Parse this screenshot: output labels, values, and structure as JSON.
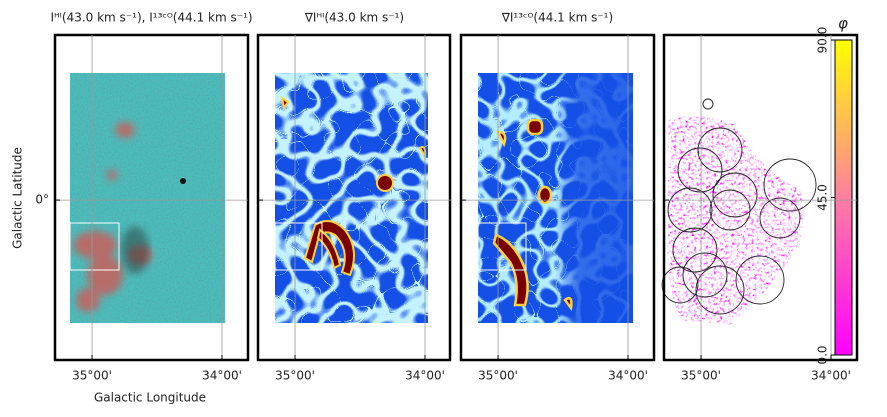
{
  "figure": {
    "xlabel": "Galactic Longitude",
    "ylabel": "Galactic Latitude",
    "xlim": [
      35.285,
      33.8
    ],
    "ylim": [
      -1.23,
      1.27
    ],
    "xticks": [
      {
        "value": 35,
        "label": "35°00'"
      },
      {
        "value": 34,
        "label": "34°00'"
      }
    ],
    "yticks": [
      {
        "value": 0,
        "label": "0°"
      }
    ],
    "panels": [
      {
        "title": "Iᴴᴵ(43.0 km s⁻¹), I¹³ᶜᴼ(44.1 km s⁻¹)"
      },
      {
        "title": "∇Iᴴᴵ(43.0 km s⁻¹)"
      },
      {
        "title": "∇I¹³ᶜᴼ(44.1 km s⁻¹)"
      },
      {
        "title": ""
      }
    ],
    "colorbar": {
      "label": "φ",
      "clim": [
        0,
        90
      ],
      "ticks": [
        {
          "value": 0,
          "label": "0.0"
        },
        {
          "value": 45,
          "label": "45.0"
        },
        {
          "value": 90,
          "label": "90.0"
        }
      ]
    }
  }
}
